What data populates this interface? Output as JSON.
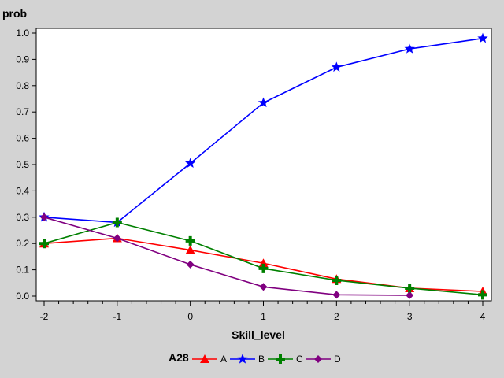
{
  "chart_data": {
    "type": "line",
    "ylabel": "prob",
    "xlabel": "Skill_level",
    "x": [
      -2,
      -1,
      0,
      1,
      2,
      3,
      4
    ],
    "xticks": [
      "-2",
      "-1",
      "0",
      "1",
      "2",
      "3",
      "4"
    ],
    "yticks": [
      "0.0",
      "0.1",
      "0.2",
      "0.3",
      "0.4",
      "0.5",
      "0.6",
      "0.7",
      "0.8",
      "0.9",
      "1.0"
    ],
    "xlim": [
      -2,
      4
    ],
    "ylim": [
      0,
      1.0
    ],
    "grid": false,
    "legend_title": "A28",
    "legend_position": "bottom",
    "series": [
      {
        "name": "A",
        "color": "#ff0000",
        "marker": "triangle",
        "values": [
          0.2,
          0.22,
          0.175,
          0.125,
          0.065,
          0.03,
          0.018
        ]
      },
      {
        "name": "B",
        "color": "#0000ff",
        "marker": "star",
        "values": [
          0.3,
          0.28,
          0.505,
          0.735,
          0.87,
          0.94,
          0.98
        ]
      },
      {
        "name": "C",
        "color": "#008000",
        "marker": "plus",
        "values": [
          0.2,
          0.28,
          0.21,
          0.105,
          0.06,
          0.03,
          0.005
        ]
      },
      {
        "name": "D",
        "color": "#800080",
        "marker": "diamond",
        "values": [
          0.3,
          0.22,
          0.12,
          0.035,
          0.005,
          0.003,
          null
        ]
      }
    ]
  }
}
